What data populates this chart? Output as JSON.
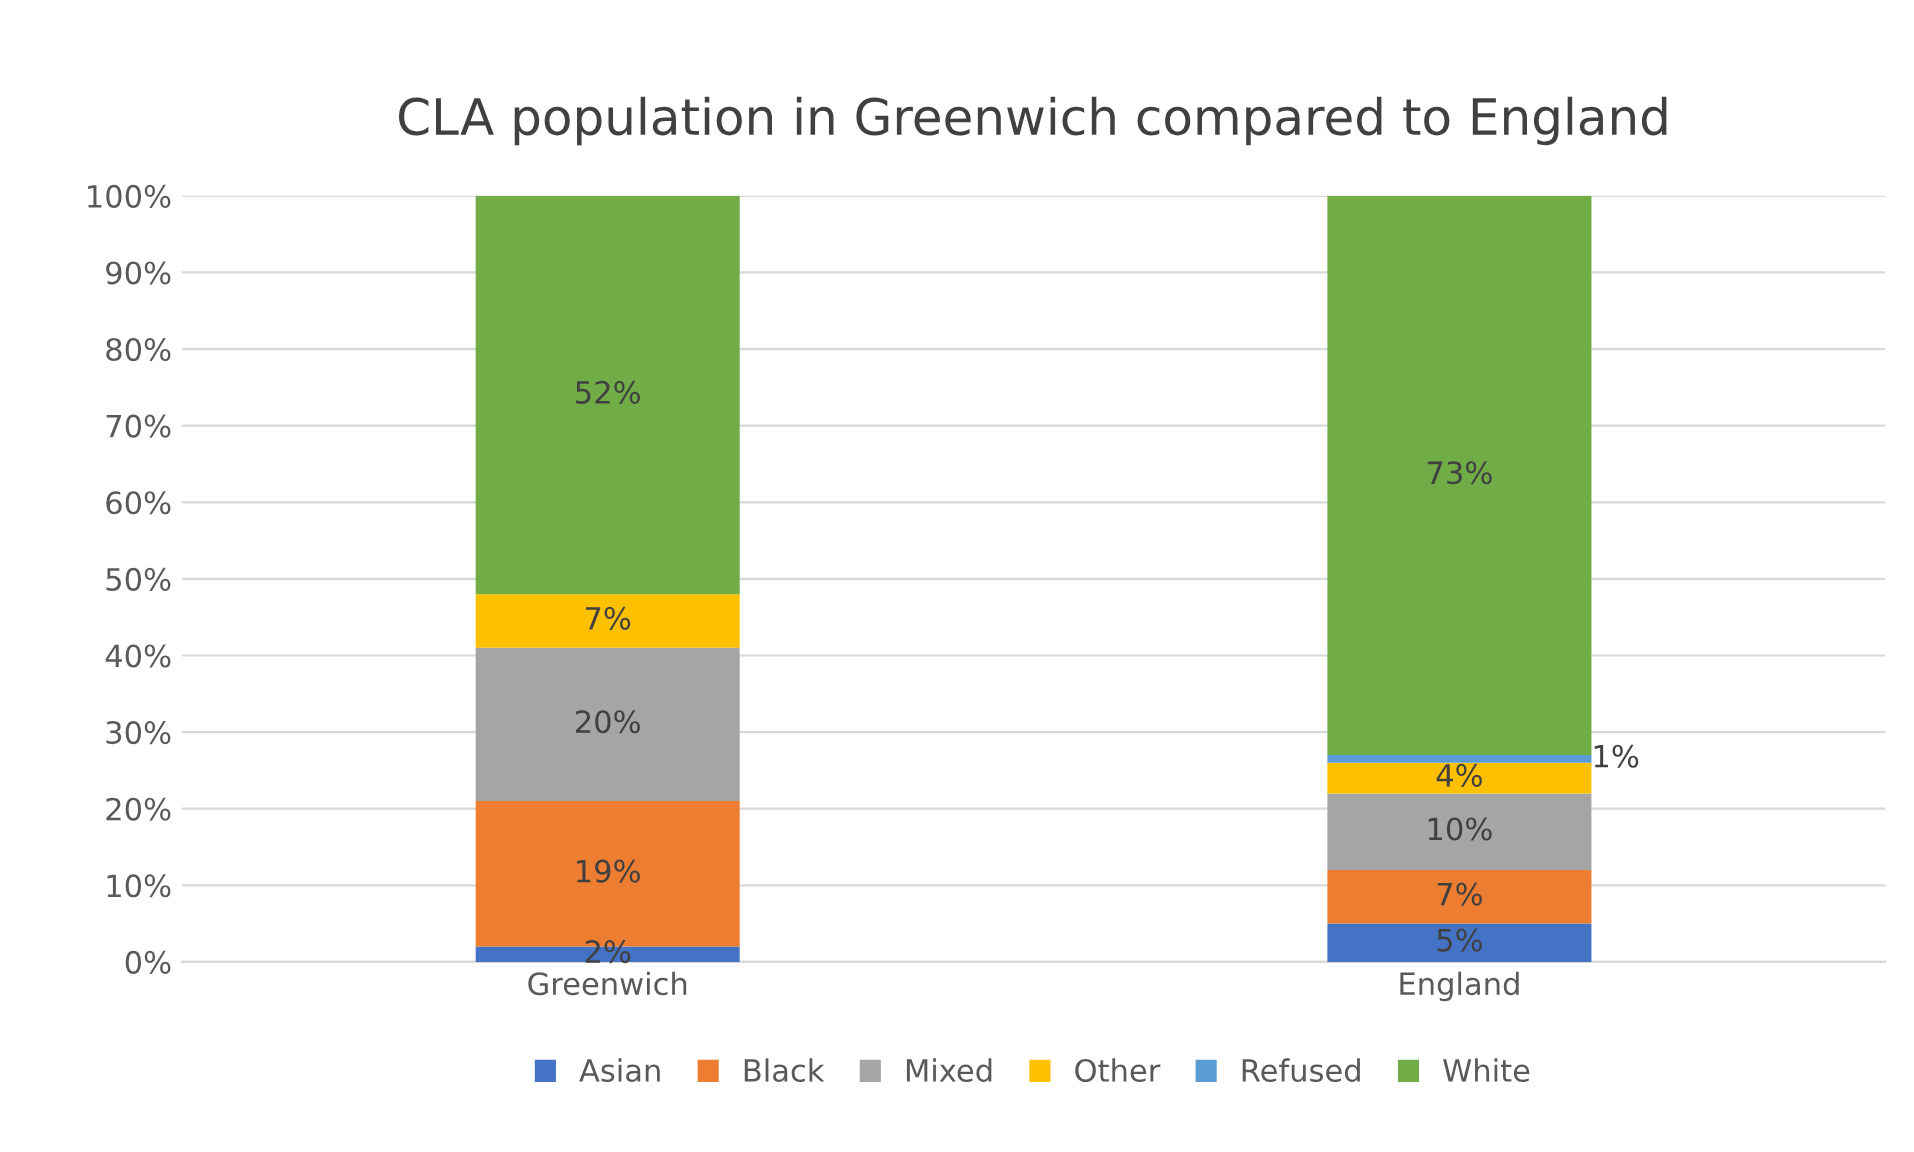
{
  "chart_data": {
    "type": "bar",
    "title": "CLA population in Greenwich compared to England",
    "categories": [
      "Greenwich",
      "England"
    ],
    "stacked": true,
    "series": [
      {
        "name": "Asian",
        "color": "#4472c4",
        "values": [
          2,
          5
        ],
        "value_labels": [
          "2%",
          "5%"
        ]
      },
      {
        "name": "Black",
        "color": "#ed7d31",
        "values": [
          19,
          7
        ],
        "value_labels": [
          "19%",
          "7%"
        ]
      },
      {
        "name": "Mixed",
        "color": "#a5a5a5",
        "values": [
          20,
          10
        ],
        "value_labels": [
          "20%",
          "10%"
        ]
      },
      {
        "name": "Other",
        "color": "#ffc000",
        "values": [
          7,
          4
        ],
        "value_labels": [
          "7%",
          "4%"
        ]
      },
      {
        "name": "Refused",
        "color": "#5b9bd5",
        "values": [
          0,
          1
        ],
        "value_labels": [
          null,
          "1%"
        ]
      },
      {
        "name": "White",
        "color": "#70ad47",
        "values": [
          52,
          73
        ],
        "value_labels": [
          "52%",
          "73%"
        ]
      }
    ],
    "ylim": [
      0,
      100
    ],
    "yticks": [
      {
        "value": 0,
        "label": "0%"
      },
      {
        "value": 10,
        "label": "10%"
      },
      {
        "value": 20,
        "label": "20%"
      },
      {
        "value": 30,
        "label": "30%"
      },
      {
        "value": 40,
        "label": "40%"
      },
      {
        "value": 50,
        "label": "50%"
      },
      {
        "value": 60,
        "label": "60%"
      },
      {
        "value": 70,
        "label": "70%"
      },
      {
        "value": 80,
        "label": "80%"
      },
      {
        "value": 90,
        "label": "90%"
      },
      {
        "value": 100,
        "label": "100%"
      }
    ],
    "grid": "y",
    "legend": "bottom"
  }
}
